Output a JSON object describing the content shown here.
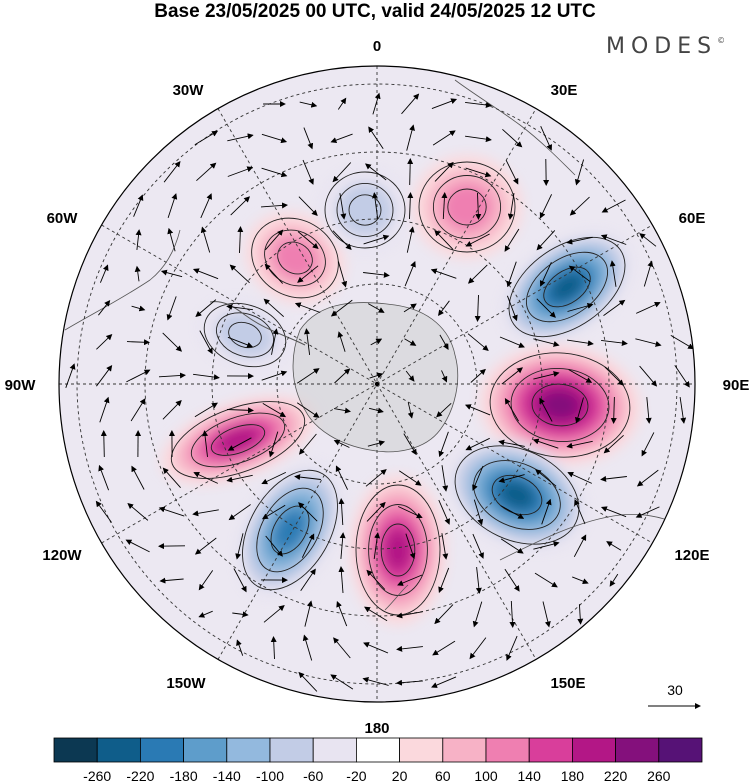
{
  "header": {
    "title": "Base 23/05/2025 00 UTC, valid 24/05/2025 12 UTC",
    "brand": "MODES",
    "brand_mark": "©"
  },
  "map": {
    "projection": "south-polar-stereographic",
    "longitude_labels": {
      "top": "0",
      "top_right": "30E",
      "right_upper": "60E",
      "right": "90E",
      "right_lower": "120E",
      "bottom_right": "150E",
      "bottom": "180",
      "bottom_left": "150W",
      "left_lower": "120W",
      "left": "90W",
      "left_upper": "60W",
      "top_left": "30W"
    },
    "vector_reference_value": "30",
    "anomaly_centers": [
      {
        "name": "pos-center-1",
        "sign": "positive",
        "peak": 150
      },
      {
        "name": "neg-center-1",
        "sign": "negative",
        "peak": -240
      },
      {
        "name": "pos-center-2",
        "sign": "positive",
        "peak": 260
      },
      {
        "name": "neg-center-2",
        "sign": "negative",
        "peak": -260
      },
      {
        "name": "pos-center-3",
        "sign": "positive",
        "peak": 120
      },
      {
        "name": "neg-center-3",
        "sign": "negative",
        "peak": -200
      },
      {
        "name": "pos-center-4",
        "sign": "positive",
        "peak": 200
      },
      {
        "name": "neg-center-4",
        "sign": "negative",
        "peak": -110
      },
      {
        "name": "pos-center-5",
        "sign": "positive",
        "peak": 120
      },
      {
        "name": "neg-center-5",
        "sign": "negative",
        "peak": -100
      }
    ]
  },
  "colorbar": {
    "ticks": [
      "-260",
      "-220",
      "-180",
      "-140",
      "-100",
      "-60",
      "-20",
      "20",
      "60",
      "100",
      "140",
      "180",
      "220",
      "260"
    ],
    "colors": [
      "#0c3852",
      "#0f5d8a",
      "#2a7ab4",
      "#5e9dcb",
      "#93b9de",
      "#c2cce6",
      "#e8e4f1",
      "#ffffff",
      "#fbd9dd",
      "#f7b2c6",
      "#ef7fb1",
      "#d93e9b",
      "#b31786",
      "#84107c",
      "#561276"
    ]
  }
}
